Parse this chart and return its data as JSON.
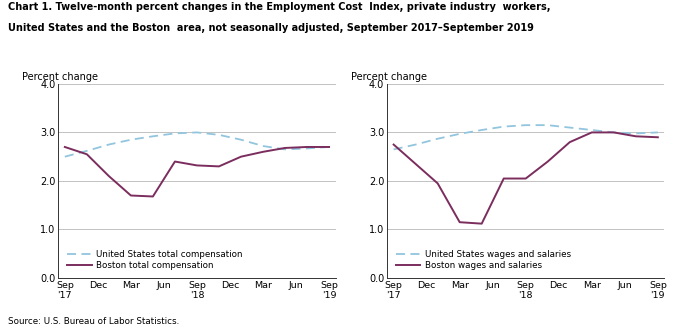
{
  "title_line1": "Chart 1. Twelve-month percent changes in the Employment Cost  Index, private industry  workers,",
  "title_line2": "United States and the Boston  area, not seasonally adjusted, September 2017–September 2019",
  "source": "Source: U.S. Bureau of Labor Statistics.",
  "ylabel_text": "Percent change",
  "ylim": [
    0.0,
    4.0
  ],
  "yticks": [
    0.0,
    1.0,
    2.0,
    3.0,
    4.0
  ],
  "x_labels": [
    "Sep\n'17",
    "Dec",
    "Mar",
    "Jun",
    "Sep\n'18",
    "Dec",
    "Mar",
    "Jun",
    "Sep\n'19"
  ],
  "us_color": "#92C5DE",
  "boston_color": "#7B2D5E",
  "left": {
    "us_label": "United States total compensation",
    "boston_label": "Boston total compensation",
    "us_data": [
      2.5,
      2.62,
      2.75,
      2.85,
      2.92,
      2.98,
      3.0,
      2.95,
      2.85,
      2.72,
      2.65,
      2.67,
      2.7
    ],
    "boston_data": [
      2.7,
      2.55,
      2.1,
      1.7,
      1.68,
      2.4,
      2.32,
      2.3,
      2.5,
      2.6,
      2.68,
      2.7,
      2.7
    ]
  },
  "right": {
    "us_label": "United States wages and salaries",
    "boston_label": "Boston wages and salaries",
    "us_data": [
      2.65,
      2.75,
      2.87,
      2.97,
      3.05,
      3.12,
      3.15,
      3.15,
      3.1,
      3.05,
      3.0,
      2.98,
      3.0
    ],
    "boston_data": [
      2.75,
      2.35,
      1.95,
      1.15,
      1.12,
      2.05,
      2.05,
      2.4,
      2.8,
      3.0,
      3.0,
      2.92,
      2.9
    ]
  }
}
